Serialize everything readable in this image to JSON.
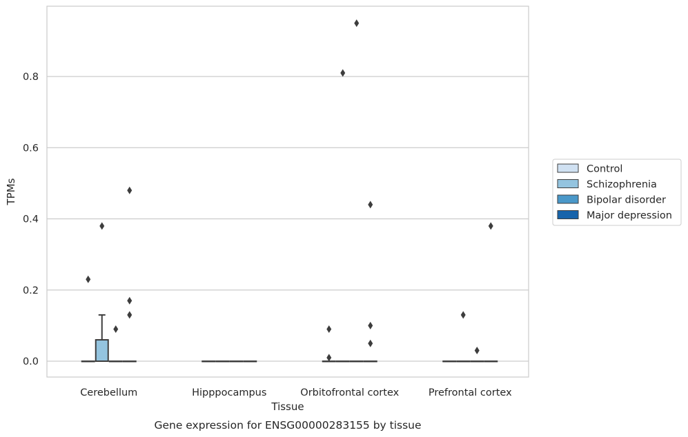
{
  "chart_data": {
    "type": "box",
    "title": "",
    "caption": "Gene expression for ENSG00000283155 by tissue",
    "xlabel": "Tissue",
    "ylabel": "TPMs",
    "categories": [
      "Cerebellum",
      "Hipppocampus",
      "Orbitofrontal cortex",
      "Prefrontal cortex"
    ],
    "ylim": [
      -0.045,
      0.98
    ],
    "yticks": [
      0.0,
      0.2,
      0.4,
      0.6,
      0.8
    ],
    "ytick_labels": [
      "0.0",
      "0.2",
      "0.4",
      "0.6",
      "0.8"
    ],
    "grid": true,
    "legend_placement": "right",
    "series": [
      {
        "name": "Control",
        "color": "#d0e1f2",
        "boxes": [
          {
            "q1": 0,
            "median": 0,
            "q3": 0,
            "whislo": 0,
            "whishi": 0,
            "fliers": [
              0.23
            ]
          },
          {
            "q1": 0,
            "median": 0,
            "q3": 0,
            "whislo": 0,
            "whishi": 0,
            "fliers": []
          },
          {
            "q1": 0,
            "median": 0,
            "q3": 0,
            "whislo": 0,
            "whishi": 0,
            "fliers": [
              0.09,
              0.01
            ]
          },
          {
            "q1": 0,
            "median": 0,
            "q3": 0,
            "whislo": 0,
            "whishi": 0,
            "fliers": []
          }
        ]
      },
      {
        "name": "Schizophrenia",
        "color": "#94c4df",
        "boxes": [
          {
            "q1": 0,
            "median": 0,
            "q3": 0.06,
            "whislo": 0,
            "whishi": 0.13,
            "fliers": [
              0.38
            ]
          },
          {
            "q1": 0,
            "median": 0,
            "q3": 0,
            "whislo": 0,
            "whishi": 0,
            "fliers": []
          },
          {
            "q1": 0,
            "median": 0,
            "q3": 0,
            "whislo": 0,
            "whishi": 0,
            "fliers": [
              0.81
            ]
          },
          {
            "q1": 0,
            "median": 0,
            "q3": 0,
            "whislo": 0,
            "whishi": 0,
            "fliers": [
              0.13
            ]
          }
        ]
      },
      {
        "name": "Bipolar disorder",
        "color": "#4a98c9",
        "boxes": [
          {
            "q1": 0,
            "median": 0,
            "q3": 0,
            "whislo": 0,
            "whishi": 0,
            "fliers": [
              0.09
            ]
          },
          {
            "q1": 0,
            "median": 0,
            "q3": 0,
            "whislo": 0,
            "whishi": 0,
            "fliers": []
          },
          {
            "q1": 0,
            "median": 0,
            "q3": 0,
            "whislo": 0,
            "whishi": 0,
            "fliers": [
              0.95
            ]
          },
          {
            "q1": 0,
            "median": 0,
            "q3": 0,
            "whislo": 0,
            "whishi": 0,
            "fliers": [
              0.03
            ]
          }
        ]
      },
      {
        "name": "Major depression",
        "color": "#1764ab",
        "boxes": [
          {
            "q1": 0,
            "median": 0,
            "q3": 0,
            "whislo": 0,
            "whishi": 0,
            "fliers": [
              0.48,
              0.17,
              0.13
            ]
          },
          {
            "q1": 0,
            "median": 0,
            "q3": 0,
            "whislo": 0,
            "whishi": 0,
            "fliers": []
          },
          {
            "q1": 0,
            "median": 0,
            "q3": 0,
            "whislo": 0,
            "whishi": 0,
            "fliers": [
              0.44,
              0.1,
              0.05
            ]
          },
          {
            "q1": 0,
            "median": 0,
            "q3": 0,
            "whislo": 0,
            "whishi": 0,
            "fliers": [
              0.38
            ]
          }
        ]
      }
    ],
    "colors": {
      "grid": "#cccccc",
      "frame": "#cccccc",
      "stroke": "#3d3d3d",
      "flier": "#3d3d3d"
    }
  }
}
